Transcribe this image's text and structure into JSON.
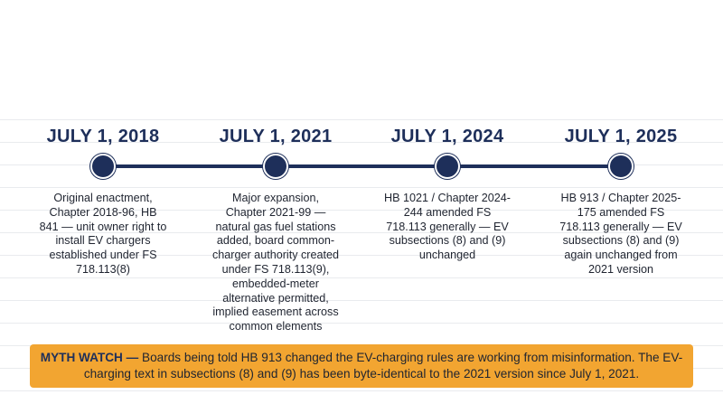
{
  "timeline": {
    "milestones": [
      {
        "date": "JULY 1, 2018",
        "description": "Original enactment, Chapter 2018-96, HB 841 — unit owner right to install EV chargers established under FS 718.113(8)"
      },
      {
        "date": "JULY 1, 2021",
        "description": "Major expansion, Chapter 2021-99 — natural gas fuel stations added, board common-charger authority created under FS 718.113(9), embedded-meter alternative permitted, implied easement across common elements"
      },
      {
        "date": "JULY 1, 2024",
        "description": "HB 1021 / Chapter 2024-244 amended FS 718.113 generally — EV subsections (8) and (9) unchanged"
      },
      {
        "date": "JULY 1, 2025",
        "description": "HB 913 / Chapter 2025-175 amended FS 718.113 generally — EV subsections (8) and (9) again unchanged from 2021 version"
      }
    ]
  },
  "callout": {
    "label": "MYTH WATCH —",
    "text": "Boards being told HB 913 changed the EV-charging rules are working from misinformation. The EV-charging text in subsections (8) and (9) has been byte-identical to the 2021 version since July 1, 2021."
  },
  "colors": {
    "navy": "#1e2f5a",
    "callout_background": "#f2a531",
    "body_text": "#1f2430"
  }
}
